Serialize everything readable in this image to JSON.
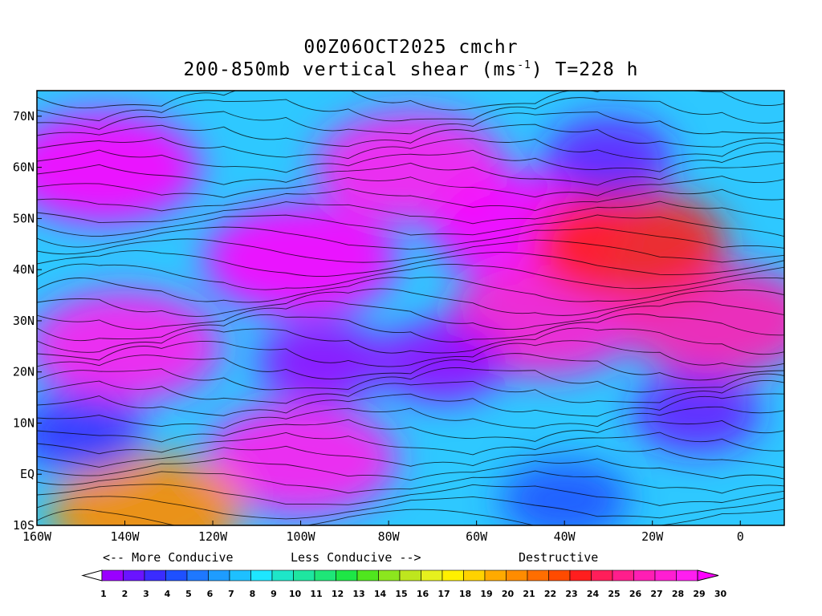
{
  "title": {
    "line1": "00Z06OCT2025 cmchr",
    "line2_pre": "200-850mb vertical shear (ms",
    "line2_sup": "-1",
    "line2_post": ") T=228 h"
  },
  "map": {
    "lon_range": [
      -160,
      10
    ],
    "lat_range": [
      -10,
      75
    ],
    "lon_ticks": [
      {
        "lon": -160,
        "label": "160W"
      },
      {
        "lon": -140,
        "label": "140W"
      },
      {
        "lon": -120,
        "label": "120W"
      },
      {
        "lon": -100,
        "label": "100W"
      },
      {
        "lon": -80,
        "label": "80W"
      },
      {
        "lon": -60,
        "label": "60W"
      },
      {
        "lon": -40,
        "label": "40W"
      },
      {
        "lon": -20,
        "label": "20W"
      },
      {
        "lon": 0,
        "label": "0"
      }
    ],
    "lat_ticks": [
      {
        "lat": 70,
        "label": "70N"
      },
      {
        "lat": 60,
        "label": "60N"
      },
      {
        "lat": 50,
        "label": "50N"
      },
      {
        "lat": 40,
        "label": "40N"
      },
      {
        "lat": 30,
        "label": "30N"
      },
      {
        "lat": 20,
        "label": "20N"
      },
      {
        "lat": 10,
        "label": "10N"
      },
      {
        "lat": 0,
        "label": "EQ"
      },
      {
        "lat": -10,
        "label": "10S"
      }
    ],
    "shear_maxima": [
      {
        "lon": -145,
        "lat": 60,
        "value": 30
      },
      {
        "lon": -100,
        "lat": 42,
        "value": 30
      },
      {
        "lon": -75,
        "lat": 60,
        "value": 29
      },
      {
        "lon": -48,
        "lat": 48,
        "value": 30
      },
      {
        "lon": -45,
        "lat": 30,
        "value": 28
      },
      {
        "lon": -140,
        "lat": 25,
        "value": 29
      },
      {
        "lon": -100,
        "lat": 3,
        "value": 29
      },
      {
        "lon": -5,
        "lat": 30,
        "value": 27
      },
      {
        "lon": -25,
        "lat": 45,
        "value": 24
      },
      {
        "lon": -135,
        "lat": -7,
        "value": 21
      }
    ],
    "shear_minima": [
      {
        "lon": -95,
        "lat": 22,
        "value": 2
      },
      {
        "lon": -68,
        "lat": 22,
        "value": 2
      },
      {
        "lon": -10,
        "lat": 12,
        "value": 3
      },
      {
        "lon": -150,
        "lat": 8,
        "value": 4
      },
      {
        "lon": -30,
        "lat": 62,
        "value": 3
      },
      {
        "lon": -40,
        "lat": -5,
        "value": 5
      }
    ]
  },
  "legend": {
    "more_conducive": "<-- More Conducive",
    "less_conducive": "Less Conducive -->",
    "destructive": "Destructive",
    "labels": [
      "1",
      "2",
      "3",
      "4",
      "5",
      "6",
      "7",
      "8",
      "9",
      "10",
      "11",
      "12",
      "13",
      "14",
      "15",
      "16",
      "17",
      "18",
      "19",
      "20",
      "21",
      "22",
      "23",
      "24",
      "25",
      "26",
      "27",
      "28",
      "29",
      "30"
    ],
    "colors": [
      "#ffffff",
      "#9a00ff",
      "#6a14ff",
      "#3a2cff",
      "#1e50ff",
      "#1e78ff",
      "#1e9cff",
      "#1ec0ff",
      "#1ee6ff",
      "#1ee6c8",
      "#1ee6a0",
      "#1ee678",
      "#1ee646",
      "#50e61e",
      "#8ce61e",
      "#bee61e",
      "#e6f01e",
      "#fff000",
      "#ffd200",
      "#ffaa00",
      "#ff8c00",
      "#ff6e00",
      "#ff4b00",
      "#ff1e1e",
      "#ff1e5a",
      "#ff1e8c",
      "#ff1eb4",
      "#ff1ed2",
      "#ff1ef0",
      "#ff00ff"
    ]
  }
}
